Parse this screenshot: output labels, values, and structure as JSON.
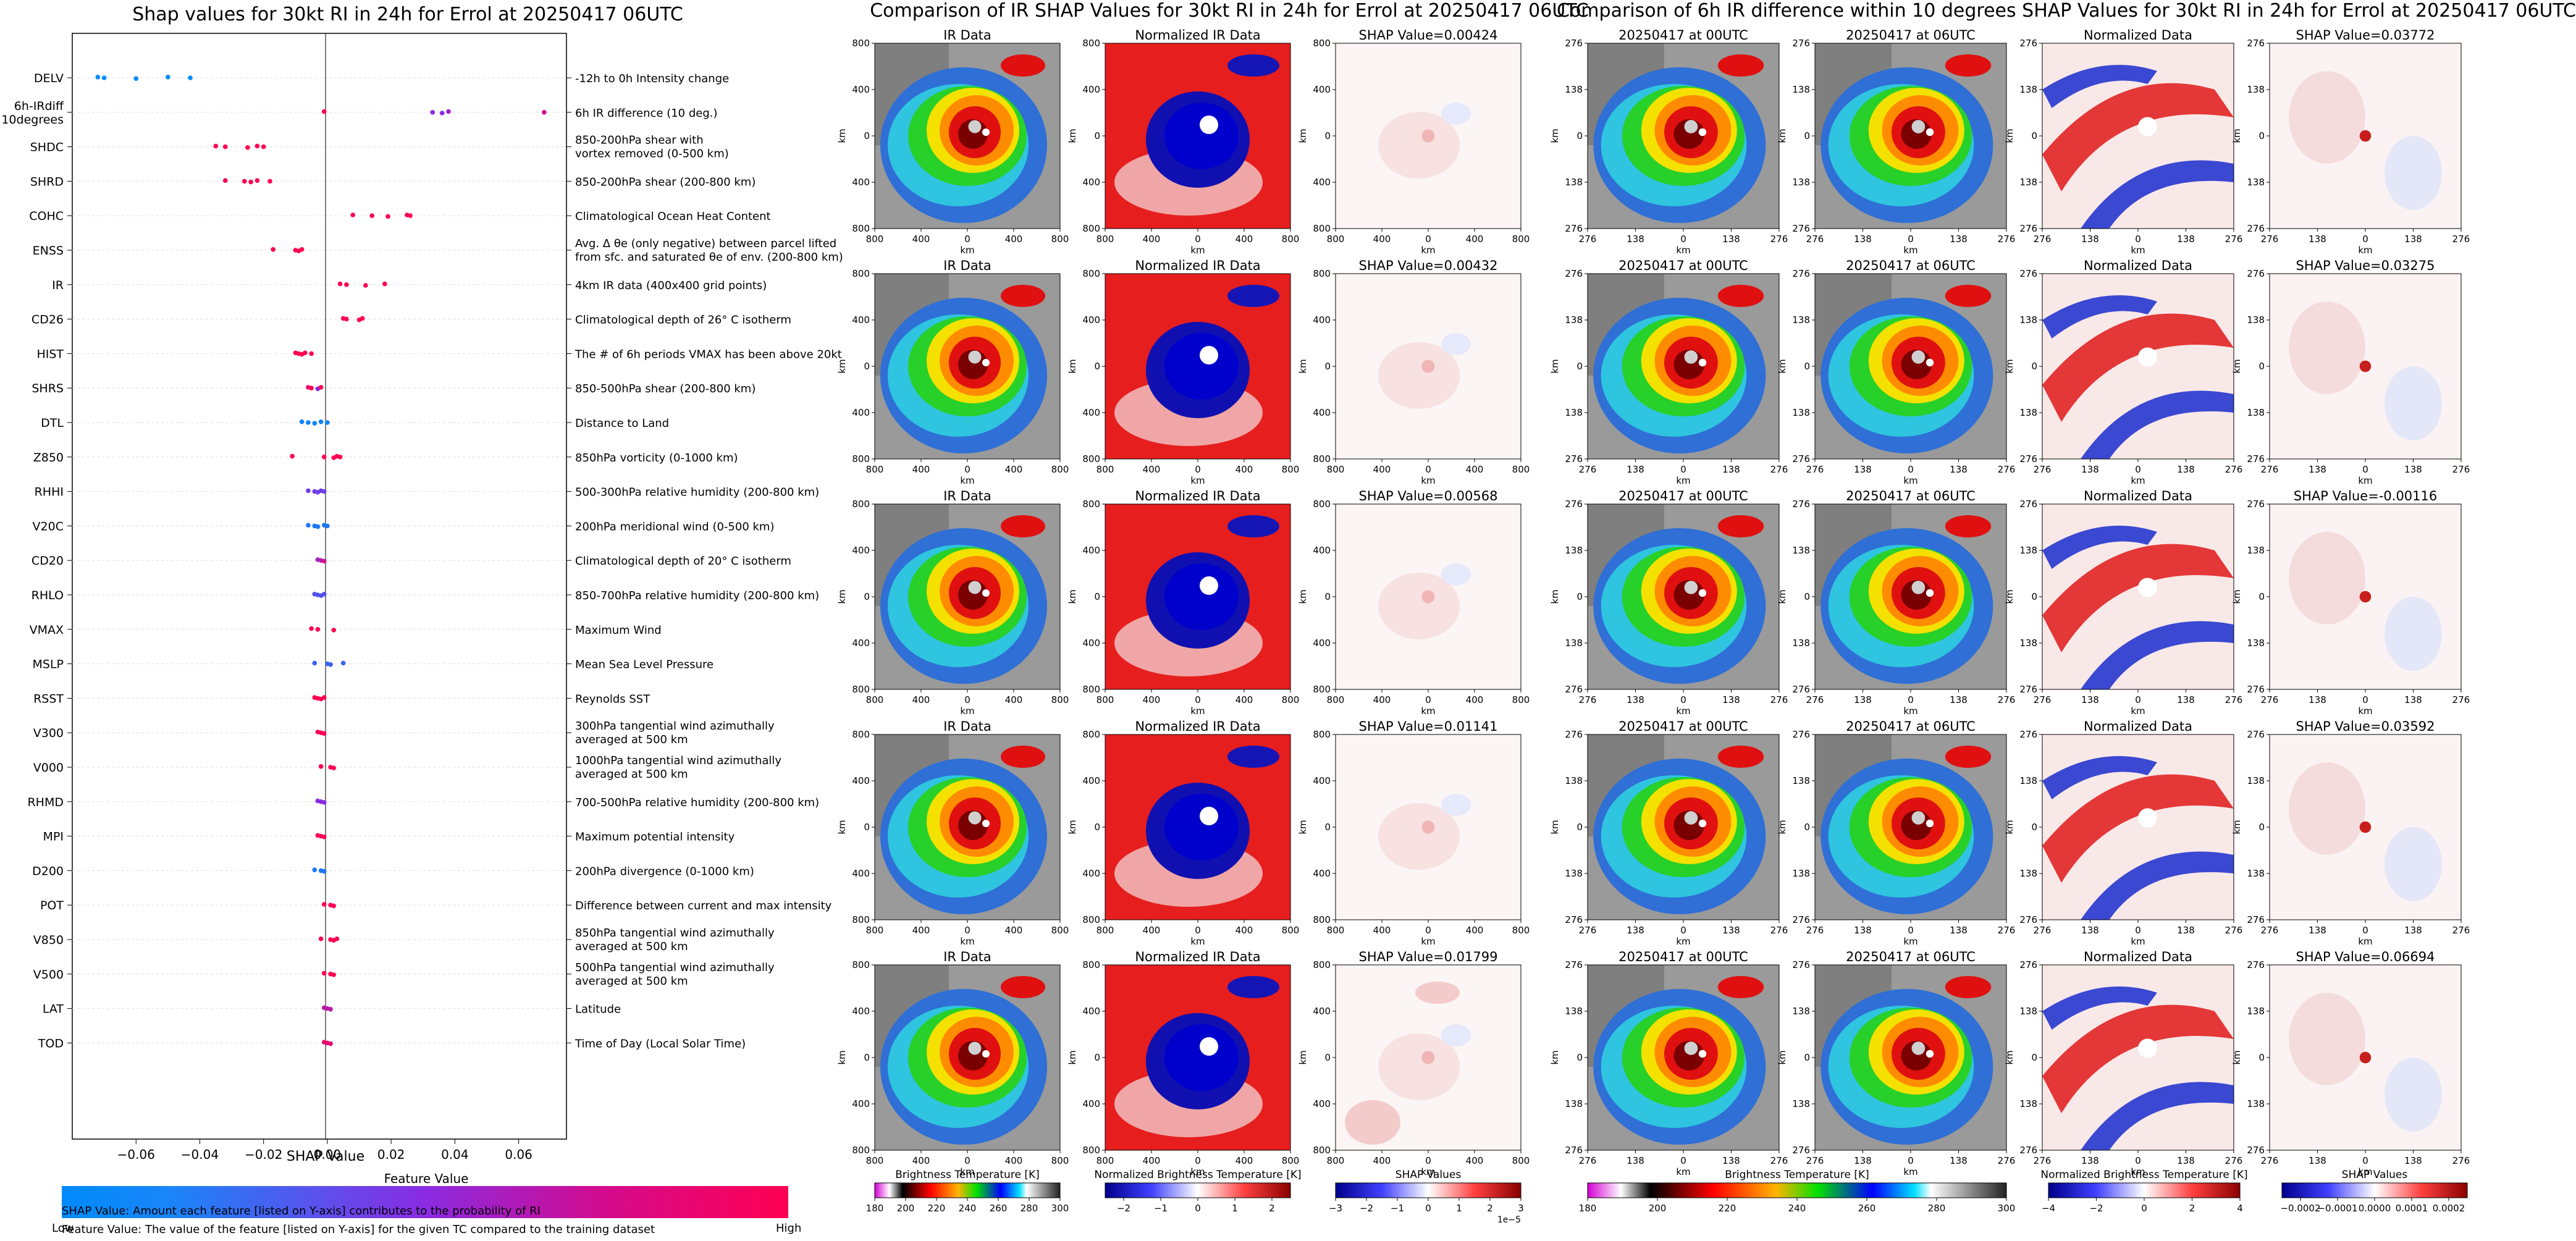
{
  "shap_plot": {
    "title": "Shap values for 30kt RI in 24h for Errol at 20250417 06UTC",
    "xlabel": "SHAP Value",
    "colorbar_label": "Feature Value",
    "colorbar_low": "Low",
    "colorbar_high": "High",
    "caption1": "SHAP Value: Amount each feature [listed on Y-axis] contributes to the probability of RI",
    "caption2": "Feature Value: The value of the feature [listed on Y-axis] for the given TC compared to the training dataset",
    "colors": {
      "low": "#008bfb",
      "mid": "#8a2be2",
      "high": "#ff0052"
    }
  },
  "ir_section": {
    "title": "Comparison of IR SHAP Values for 30kt RI in 24h for Errol at 20250417 06UTC",
    "col_titles": [
      "IR Data",
      "Normalized IR Data"
    ],
    "shap_titles": [
      "SHAP Value=0.00424",
      "SHAP Value=0.00432",
      "SHAP Value=0.00568",
      "SHAP Value=0.01141",
      "SHAP Value=0.01799"
    ],
    "x_ticks": [
      "800",
      "400",
      "0",
      "400",
      "800"
    ],
    "y_ticks": [
      "800",
      "400",
      "0",
      "400",
      "800"
    ],
    "axis_label": "km",
    "cbar1_label": "Brightness Temperature [K]",
    "cbar1_ticks": [
      "180",
      "200",
      "220",
      "240",
      "260",
      "280",
      "300"
    ],
    "cbar2_label": "Normalized Brightness Temperature [K]",
    "cbar2_ticks": [
      "−2",
      "−1",
      "0",
      "1",
      "2"
    ],
    "cbar3_label": "SHAP Values",
    "cbar3_ticks": [
      "−3",
      "−2",
      "−1",
      "0",
      "1",
      "2",
      "3"
    ],
    "cbar3_exp": "1e−5"
  },
  "diff_section": {
    "title": "Comparison of 6h IR difference within 10 degrees SHAP Values for 30kt RI in 24h for Errol at 20250417 06UTC",
    "col_titles": [
      "20250417 at 00UTC",
      "20250417 at 06UTC",
      "Normalized Data"
    ],
    "shap_titles": [
      "SHAP Value=0.03772",
      "SHAP Value=0.03275",
      "SHAP Value=-0.00116",
      "SHAP Value=0.03592",
      "SHAP Value=0.06694"
    ],
    "x_ticks": [
      "276",
      "138",
      "0",
      "138",
      "276"
    ],
    "y_ticks": [
      "276",
      "138",
      "0",
      "138",
      "276"
    ],
    "axis_label": "km",
    "cbar1_label": "Brightness Temperature [K]",
    "cbar1_ticks": [
      "180",
      "200",
      "220",
      "240",
      "260",
      "280",
      "300"
    ],
    "cbar2_label": "Normalized Brightness Temperature [K]",
    "cbar2_ticks": [
      "−4",
      "−2",
      "0",
      "2",
      "4"
    ],
    "cbar3_label": "SHAP Values",
    "cbar3_ticks": [
      "−0.0002",
      "−0.0001",
      "0.0000",
      "0.0001",
      "0.0002"
    ]
  },
  "chart_data": [
    {
      "type": "scatter",
      "title": "Shap values for 30kt RI in 24h for Errol at 20250417 06UTC",
      "xlabel": "SHAP Value",
      "ylabel": "",
      "xlim": [
        -0.08,
        0.075
      ],
      "x_ticks": [
        "−0.06",
        "−0.04",
        "−0.02",
        "0.00",
        "0.02",
        "0.04",
        "0.06"
      ],
      "x_tick_values": [
        -0.06,
        -0.04,
        -0.02,
        0.0,
        0.02,
        0.04,
        0.06
      ],
      "features": [
        {
          "name": "DELV",
          "desc": [
            "-12h to 0h Intensity change"
          ],
          "points": [
            [
              -0.072,
              0.0
            ],
            [
              -0.07,
              0.0
            ],
            [
              -0.06,
              0.0
            ],
            [
              -0.05,
              0.0
            ],
            [
              -0.043,
              0.0
            ]
          ]
        },
        {
          "name": "6h-IRdiff|10degrees",
          "desc": [
            "6h IR difference (10 deg.)"
          ],
          "points": [
            [
              -0.001,
              1.0
            ],
            [
              0.033,
              0.5
            ],
            [
              0.036,
              0.5
            ],
            [
              0.038,
              0.6
            ],
            [
              0.068,
              0.8
            ]
          ]
        },
        {
          "name": "SHDC",
          "desc": [
            "850-200hPa shear with",
            "vortex removed (0-500 km)"
          ],
          "points": [
            [
              -0.035,
              1.0
            ],
            [
              -0.032,
              1.0
            ],
            [
              -0.025,
              1.0
            ],
            [
              -0.022,
              1.0
            ],
            [
              -0.02,
              1.0
            ]
          ]
        },
        {
          "name": "SHRD",
          "desc": [
            "850-200hPa shear (200-800 km)"
          ],
          "points": [
            [
              -0.032,
              1.0
            ],
            [
              -0.026,
              1.0
            ],
            [
              -0.024,
              1.0
            ],
            [
              -0.022,
              1.0
            ],
            [
              -0.018,
              1.0
            ]
          ]
        },
        {
          "name": "COHC",
          "desc": [
            "Climatological Ocean Heat Content"
          ],
          "points": [
            [
              0.008,
              1.0
            ],
            [
              0.014,
              1.0
            ],
            [
              0.019,
              1.0
            ],
            [
              0.025,
              1.0
            ],
            [
              0.026,
              1.0
            ]
          ]
        },
        {
          "name": "ENSS",
          "desc": [
            "Avg. Δ θe (only negative) between parcel lifted",
            "from sfc. and saturated θe of env. (200-800 km)"
          ],
          "points": [
            [
              -0.017,
              1.0
            ],
            [
              -0.01,
              1.0
            ],
            [
              -0.009,
              1.0
            ],
            [
              -0.008,
              1.0
            ]
          ]
        },
        {
          "name": "IR",
          "desc": [
            "4km IR data (400x400 grid points)"
          ],
          "points": [
            [
              0.004,
              1.0
            ],
            [
              0.006,
              1.0
            ],
            [
              0.012,
              1.0
            ],
            [
              0.018,
              1.0
            ]
          ]
        },
        {
          "name": "CD26",
          "desc": [
            "Climatological depth of 26° C isotherm"
          ],
          "points": [
            [
              0.005,
              1.0
            ],
            [
              0.006,
              1.0
            ],
            [
              0.01,
              1.0
            ],
            [
              0.011,
              1.0
            ]
          ]
        },
        {
          "name": "HIST",
          "desc": [
            "The # of 6h periods VMAX has been above 20kt"
          ],
          "points": [
            [
              -0.01,
              1.0
            ],
            [
              -0.009,
              1.0
            ],
            [
              -0.008,
              1.0
            ],
            [
              -0.007,
              1.0
            ],
            [
              -0.005,
              1.0
            ]
          ]
        },
        {
          "name": "SHRS",
          "desc": [
            "850-500hPa shear (200-800 km)"
          ],
          "points": [
            [
              -0.006,
              0.9
            ],
            [
              -0.005,
              1.0
            ],
            [
              -0.003,
              0.5
            ],
            [
              -0.002,
              1.0
            ]
          ]
        },
        {
          "name": "DTL",
          "desc": [
            "Distance to Land"
          ],
          "points": [
            [
              -0.008,
              0.05
            ],
            [
              -0.006,
              0.05
            ],
            [
              -0.004,
              0.05
            ],
            [
              -0.002,
              0.05
            ],
            [
              0.0,
              0.05
            ]
          ]
        },
        {
          "name": "Z850",
          "desc": [
            "850hPa vorticity (0-1000 km)"
          ],
          "points": [
            [
              -0.011,
              1.0
            ],
            [
              -0.001,
              1.0
            ],
            [
              0.002,
              1.0
            ],
            [
              0.003,
              1.0
            ],
            [
              0.004,
              1.0
            ]
          ]
        },
        {
          "name": "RHHI",
          "desc": [
            "500-300hPa relative humidity (200-800 km)"
          ],
          "points": [
            [
              -0.006,
              0.4
            ],
            [
              -0.004,
              0.4
            ],
            [
              -0.003,
              0.4
            ],
            [
              -0.002,
              0.4
            ],
            [
              -0.001,
              0.4
            ]
          ]
        },
        {
          "name": "V20C",
          "desc": [
            "200hPa meridional wind (0-500 km)"
          ],
          "points": [
            [
              -0.006,
              0.1
            ],
            [
              -0.004,
              0.1
            ],
            [
              -0.003,
              0.1
            ],
            [
              -0.001,
              0.1
            ],
            [
              0.0,
              0.1
            ]
          ]
        },
        {
          "name": "CD20",
          "desc": [
            "Climatological depth of 20° C isotherm"
          ],
          "points": [
            [
              -0.003,
              0.6
            ],
            [
              -0.002,
              0.7
            ],
            [
              -0.001,
              0.8
            ]
          ]
        },
        {
          "name": "RHLO",
          "desc": [
            "850-700hPa relative humidity (200-800 km)"
          ],
          "points": [
            [
              -0.004,
              0.3
            ],
            [
              -0.003,
              0.3
            ],
            [
              -0.002,
              0.3
            ],
            [
              -0.001,
              0.3
            ]
          ]
        },
        {
          "name": "VMAX",
          "desc": [
            "Maximum Wind"
          ],
          "points": [
            [
              -0.005,
              1.0
            ],
            [
              -0.003,
              1.0
            ],
            [
              0.002,
              1.0
            ]
          ]
        },
        {
          "name": "MSLP",
          "desc": [
            "Mean Sea Level Pressure"
          ],
          "points": [
            [
              -0.004,
              0.2
            ],
            [
              0.0,
              0.2
            ],
            [
              0.001,
              0.2
            ],
            [
              0.005,
              0.2
            ]
          ]
        },
        {
          "name": "RSST",
          "desc": [
            "Reynolds SST"
          ],
          "points": [
            [
              -0.004,
              1.0
            ],
            [
              -0.003,
              1.0
            ],
            [
              -0.002,
              1.0
            ],
            [
              -0.001,
              1.0
            ]
          ]
        },
        {
          "name": "V300",
          "desc": [
            "300hPa tangential wind azimuthally",
            "averaged at 500 km"
          ],
          "points": [
            [
              -0.003,
              1.0
            ],
            [
              -0.002,
              1.0
            ],
            [
              -0.001,
              1.0
            ]
          ]
        },
        {
          "name": "V000",
          "desc": [
            "1000hPa tangential wind azimuthally",
            "averaged at 500 km"
          ],
          "points": [
            [
              -0.002,
              1.0
            ],
            [
              0.001,
              1.0
            ],
            [
              0.002,
              1.0
            ]
          ]
        },
        {
          "name": "RHMD",
          "desc": [
            "700-500hPa relative humidity (200-800 km)"
          ],
          "points": [
            [
              -0.003,
              0.5
            ],
            [
              -0.002,
              0.5
            ],
            [
              -0.001,
              0.5
            ]
          ]
        },
        {
          "name": "MPI",
          "desc": [
            "Maximum potential intensity"
          ],
          "points": [
            [
              -0.003,
              1.0
            ],
            [
              -0.002,
              1.0
            ],
            [
              -0.001,
              1.0
            ]
          ]
        },
        {
          "name": "D200",
          "desc": [
            "200hPa divergence (0-1000 km)"
          ],
          "points": [
            [
              -0.004,
              0.1
            ],
            [
              -0.002,
              0.1
            ],
            [
              -0.001,
              0.1
            ]
          ]
        },
        {
          "name": "POT",
          "desc": [
            "Difference between current and max intensity"
          ],
          "points": [
            [
              -0.001,
              1.0
            ],
            [
              0.001,
              1.0
            ],
            [
              0.002,
              1.0
            ]
          ]
        },
        {
          "name": "V850",
          "desc": [
            "850hPa tangential wind azimuthally",
            "averaged at 500 km"
          ],
          "points": [
            [
              -0.002,
              1.0
            ],
            [
              0.001,
              1.0
            ],
            [
              0.002,
              1.0
            ],
            [
              0.003,
              1.0
            ]
          ]
        },
        {
          "name": "V500",
          "desc": [
            "500hPa tangential wind azimuthally",
            "averaged at 500 km"
          ],
          "points": [
            [
              -0.001,
              1.0
            ],
            [
              0.001,
              1.0
            ],
            [
              0.002,
              1.0
            ]
          ]
        },
        {
          "name": "LAT",
          "desc": [
            "Latitude"
          ],
          "points": [
            [
              -0.001,
              0.7
            ],
            [
              0.0,
              0.7
            ],
            [
              0.001,
              0.7
            ]
          ]
        },
        {
          "name": "TOD",
          "desc": [
            "Time of Day (Local Solar Time)"
          ],
          "points": [
            [
              -0.001,
              0.9
            ],
            [
              0.0,
              0.9
            ],
            [
              0.001,
              0.9
            ]
          ]
        }
      ]
    }
  ]
}
